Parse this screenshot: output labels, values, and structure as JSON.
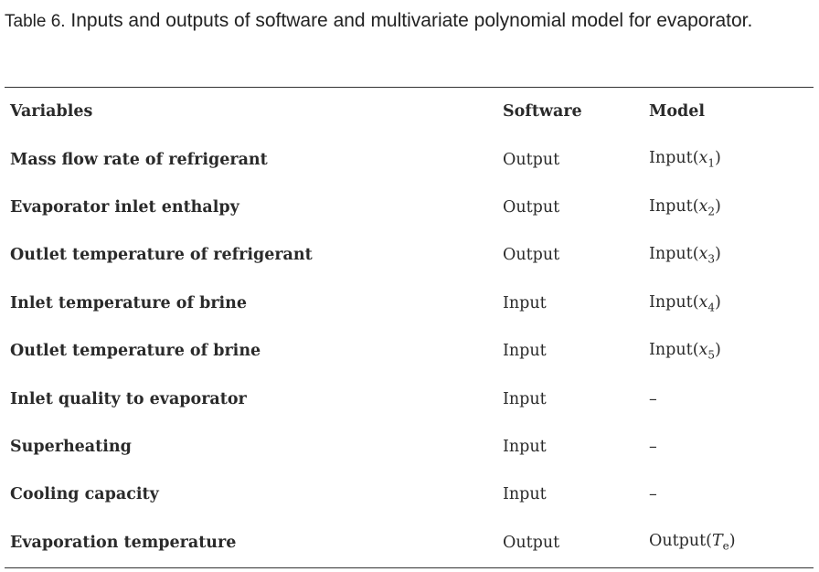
{
  "caption": {
    "label": "Table 6.",
    "text": "Inputs and outputs of software and multivariate polynomial model for evaporator."
  },
  "table": {
    "headers": [
      "Variables",
      "Software",
      "Model"
    ],
    "rows": [
      {
        "variable": "Mass flow rate of refrigerant",
        "software": "Output",
        "model_prefix": "Input(",
        "model_symbol": "x",
        "model_sub": "1",
        "model_suffix": ")"
      },
      {
        "variable": "Evaporator inlet enthalpy",
        "software": "Output",
        "model_prefix": "Input(",
        "model_symbol": "x",
        "model_sub": "2",
        "model_suffix": ")"
      },
      {
        "variable": "Outlet temperature of refrigerant",
        "software": "Output",
        "model_prefix": "Input(",
        "model_symbol": "x",
        "model_sub": "3",
        "model_suffix": ")"
      },
      {
        "variable": "Inlet temperature of brine",
        "software": "Input",
        "model_prefix": "Input(",
        "model_symbol": "x",
        "model_sub": "4",
        "model_suffix": ")"
      },
      {
        "variable": "Outlet temperature of brine",
        "software": "Input",
        "model_prefix": "Input(",
        "model_symbol": "x",
        "model_sub": "5",
        "model_suffix": ")"
      },
      {
        "variable": "Inlet quality to evaporator",
        "software": "Input",
        "model_prefix": "–",
        "model_symbol": "",
        "model_sub": "",
        "model_suffix": ""
      },
      {
        "variable": "Superheating",
        "software": "Input",
        "model_prefix": "–",
        "model_symbol": "",
        "model_sub": "",
        "model_suffix": ""
      },
      {
        "variable": "Cooling capacity",
        "software": "Input",
        "model_prefix": "–",
        "model_symbol": "",
        "model_sub": "",
        "model_suffix": ""
      },
      {
        "variable": "Evaporation temperature",
        "software": "Output",
        "model_prefix": "Output(",
        "model_symbol": "T",
        "model_sub": "e",
        "model_suffix": ")"
      }
    ]
  }
}
